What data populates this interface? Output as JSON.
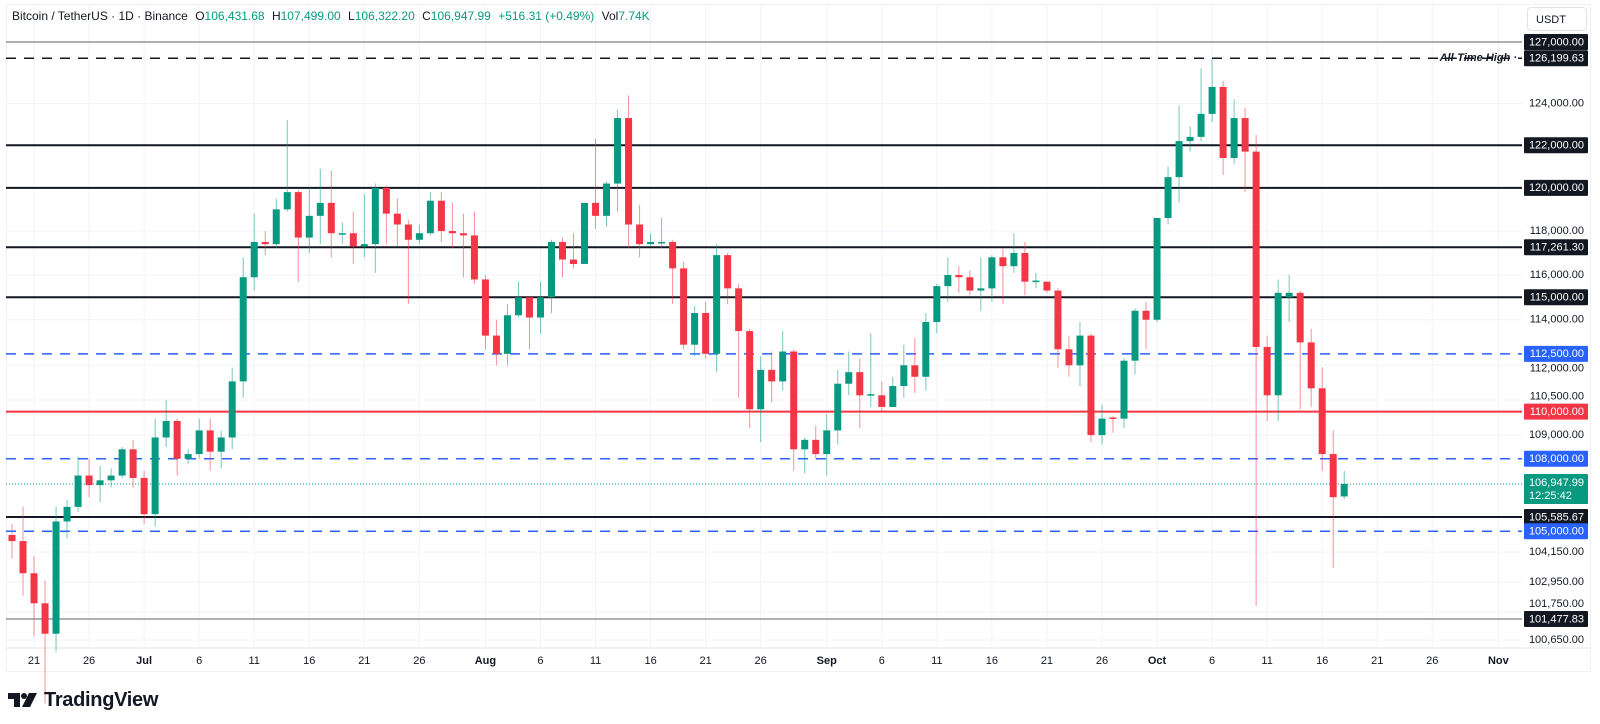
{
  "header": {
    "symbol": "Bitcoin / TetherUS · 1D · Binance",
    "o_label": "O",
    "o": "106,431.68",
    "h_label": "H",
    "h": "107,499.00",
    "l_label": "L",
    "l": "106,322.20",
    "c_label": "C",
    "c": "106,947.99",
    "change": "+516.31 (+0.49%)",
    "vol_label": "Vol",
    "vol": "7.74K"
  },
  "currency_button": "USDT",
  "brand": "TradingView",
  "colors": {
    "up": "#089981",
    "down": "#f23645",
    "blue": "#2962ff",
    "black": "#131722",
    "red": "#f23645"
  },
  "chart_data": {
    "type": "candlestick",
    "title": "Bitcoin / TetherUS · 1D · Binance",
    "scale": "log",
    "ylim": [
      100200,
      127600
    ],
    "start_date": "2025-06-19",
    "candles_ohlc": [
      [
        104850,
        105300,
        103900,
        104600
      ],
      [
        104600,
        106000,
        102400,
        103300
      ],
      [
        103300,
        104000,
        100800,
        102100
      ],
      [
        102100,
        103000,
        98200,
        100900
      ],
      [
        100900,
        106000,
        100200,
        105400
      ],
      [
        105400,
        106300,
        104700,
        106000
      ],
      [
        106000,
        108100,
        105800,
        107300
      ],
      [
        107300,
        108000,
        106400,
        106900
      ],
      [
        106900,
        107700,
        106200,
        107100
      ],
      [
        107100,
        107600,
        106800,
        107300
      ],
      [
        107300,
        108500,
        107200,
        108400
      ],
      [
        108400,
        108800,
        106800,
        107200
      ],
      [
        107200,
        107500,
        105300,
        105700
      ],
      [
        105700,
        109700,
        105200,
        108900
      ],
      [
        108900,
        110500,
        108500,
        109600
      ],
      [
        109600,
        109700,
        107300,
        108000
      ],
      [
        108000,
        108400,
        107800,
        108200
      ],
      [
        108200,
        109700,
        108000,
        109200
      ],
      [
        109200,
        109700,
        107500,
        108300
      ],
      [
        108300,
        109200,
        107600,
        108900
      ],
      [
        108900,
        111900,
        108400,
        111300
      ],
      [
        111300,
        116800,
        110600,
        115900
      ],
      [
        115900,
        118800,
        115300,
        117500
      ],
      [
        117500,
        118000,
        116900,
        117400
      ],
      [
        117400,
        119500,
        117200,
        119000
      ],
      [
        119000,
        123200,
        118900,
        119800
      ],
      [
        119800,
        119900,
        115700,
        117700
      ],
      [
        117700,
        120000,
        117000,
        118700
      ],
      [
        118700,
        120900,
        117400,
        119300
      ],
      [
        119300,
        120800,
        116800,
        117900
      ],
      [
        117900,
        118400,
        117400,
        117900
      ],
      [
        117900,
        118900,
        116500,
        117300
      ],
      [
        117300,
        119700,
        116800,
        117400
      ],
      [
        117400,
        120200,
        116100,
        120000
      ],
      [
        120000,
        120100,
        117400,
        118800
      ],
      [
        118800,
        119500,
        117300,
        118300
      ],
      [
        118300,
        118500,
        114700,
        117600
      ],
      [
        117600,
        118300,
        117400,
        117900
      ],
      [
        117900,
        119800,
        117800,
        119400
      ],
      [
        119400,
        119800,
        117500,
        118000
      ],
      [
        118000,
        119300,
        117200,
        117900
      ],
      [
        117900,
        118800,
        115900,
        117800
      ],
      [
        117800,
        118900,
        115600,
        115800
      ],
      [
        115800,
        116000,
        112700,
        113300
      ],
      [
        113300,
        114000,
        112000,
        112500
      ],
      [
        112500,
        114700,
        112000,
        114200
      ],
      [
        114200,
        115700,
        114100,
        115000
      ],
      [
        115000,
        115000,
        112700,
        114100
      ],
      [
        114100,
        115700,
        113400,
        115000
      ],
      [
        115000,
        117600,
        114300,
        117500
      ],
      [
        117500,
        117700,
        115900,
        116700
      ],
      [
        116700,
        117900,
        116300,
        116500
      ],
      [
        116500,
        119300,
        116500,
        119300
      ],
      [
        119300,
        122300,
        118100,
        118700
      ],
      [
        118700,
        120300,
        118200,
        120200
      ],
      [
        120200,
        123700,
        118900,
        123300
      ],
      [
        123300,
        124400,
        117200,
        118300
      ],
      [
        118300,
        119200,
        116800,
        117400
      ],
      [
        117400,
        117900,
        117300,
        117500
      ],
      [
        117500,
        118600,
        117200,
        117500
      ],
      [
        117500,
        117600,
        114700,
        116300
      ],
      [
        116300,
        116600,
        112700,
        112900
      ],
      [
        112900,
        114600,
        112400,
        114300
      ],
      [
        114300,
        114800,
        112300,
        112500
      ],
      [
        112500,
        117400,
        111700,
        116900
      ],
      [
        116900,
        117000,
        114700,
        115400
      ],
      [
        115400,
        115600,
        110600,
        113500
      ],
      [
        113500,
        113600,
        109300,
        110100
      ],
      [
        110100,
        112400,
        108700,
        111800
      ],
      [
        111800,
        112600,
        110400,
        111300
      ],
      [
        111300,
        113500,
        110900,
        112600
      ],
      [
        112600,
        112700,
        107500,
        108400
      ],
      [
        108400,
        108900,
        107400,
        108800
      ],
      [
        108800,
        109400,
        108000,
        108200
      ],
      [
        108200,
        109900,
        107300,
        109200
      ],
      [
        109200,
        111800,
        108600,
        111200
      ],
      [
        111200,
        112600,
        110700,
        111700
      ],
      [
        111700,
        112300,
        109300,
        110700
      ],
      [
        110700,
        113400,
        110200,
        110750
      ],
      [
        110700,
        111300,
        110000,
        110200
      ],
      [
        110200,
        111500,
        110200,
        111100
      ],
      [
        111100,
        112900,
        110600,
        112000
      ],
      [
        112000,
        113200,
        110800,
        111500
      ],
      [
        111500,
        114300,
        110900,
        113900
      ],
      [
        113900,
        115600,
        113400,
        115500
      ],
      [
        115500,
        116800,
        114800,
        116000
      ],
      [
        116000,
        116400,
        115200,
        115900
      ],
      [
        115900,
        116200,
        115100,
        115300
      ],
      [
        115300,
        116800,
        114400,
        115400
      ],
      [
        115400,
        116900,
        114800,
        116800
      ],
      [
        116800,
        117200,
        114700,
        116400
      ],
      [
        116400,
        117900,
        116100,
        117000
      ],
      [
        117000,
        117500,
        115100,
        115700
      ],
      [
        115700,
        116100,
        115400,
        115750
      ],
      [
        115700,
        115700,
        115200,
        115300
      ],
      [
        115300,
        115400,
        111900,
        112700
      ],
      [
        112700,
        113300,
        111500,
        112000
      ],
      [
        112000,
        113900,
        111100,
        113300
      ],
      [
        113300,
        113400,
        108700,
        109000
      ],
      [
        109000,
        110300,
        108600,
        109700
      ],
      [
        109750,
        109800,
        109100,
        109700
      ],
      [
        109700,
        112300,
        109300,
        112200
      ],
      [
        112200,
        114500,
        111600,
        114400
      ],
      [
        114400,
        114800,
        112700,
        114000
      ],
      [
        114000,
        118600,
        113900,
        118600
      ],
      [
        118600,
        121000,
        118300,
        120500
      ],
      [
        120500,
        123900,
        119300,
        122200
      ],
      [
        122200,
        122900,
        121700,
        122400
      ],
      [
        122400,
        125700,
        122200,
        123500
      ],
      [
        123500,
        126199.63,
        123100,
        124800
      ],
      [
        124800,
        125100,
        120600,
        121400
      ],
      [
        121400,
        124200,
        121100,
        123300
      ],
      [
        123300,
        123800,
        119800,
        121700
      ],
      [
        121700,
        122500,
        102000,
        112800
      ],
      [
        112800,
        113300,
        109600,
        110700
      ],
      [
        110700,
        115800,
        109600,
        115200
      ],
      [
        115000,
        116000,
        113900,
        115200
      ],
      [
        115200,
        115300,
        110100,
        113000
      ],
      [
        113000,
        113600,
        110200,
        111000
      ],
      [
        111000,
        111900,
        107500,
        108200
      ],
      [
        108200,
        109200,
        103500,
        106400
      ],
      [
        106431.68,
        107499,
        106322.2,
        106947.99
      ]
    ],
    "price_levels": [
      {
        "value": 127000,
        "label": "127,000.00",
        "style": "solid-thin",
        "color": "#131722"
      },
      {
        "value": 126199.63,
        "label": "126,199.63",
        "style": "dashed",
        "color": "#131722",
        "note": "All-Time High"
      },
      {
        "value": 122000,
        "label": "122,000.00",
        "style": "solid",
        "color": "#131722"
      },
      {
        "value": 120000,
        "label": "120,000.00",
        "style": "solid",
        "color": "#131722"
      },
      {
        "value": 117261.3,
        "label": "117,261.30",
        "style": "solid",
        "color": "#131722"
      },
      {
        "value": 115000,
        "label": "115,000.00",
        "style": "solid",
        "color": "#131722"
      },
      {
        "value": 112500,
        "label": "112,500.00",
        "style": "dashed",
        "color": "#2962ff"
      },
      {
        "value": 110000,
        "label": "110,000.00",
        "style": "solid",
        "color": "#f23645"
      },
      {
        "value": 108000,
        "label": "108,000.00",
        "style": "dashed",
        "color": "#2962ff"
      },
      {
        "value": 105585.67,
        "label": "105,585.67",
        "style": "solid",
        "color": "#131722"
      },
      {
        "value": 105000,
        "label": "105,000.00",
        "style": "dashed",
        "color": "#2962ff"
      },
      {
        "value": 101477.83,
        "label": "101,477.83",
        "style": "solid-thin",
        "color": "#131722"
      }
    ],
    "current_price": {
      "value": 106947.99,
      "label": "106,947.99",
      "countdown": "12:25:42",
      "color": "#089981"
    },
    "y_ticks": [
      {
        "value": 124000,
        "label": "124,000.00"
      },
      {
        "value": 118000,
        "label": "118,000.00"
      },
      {
        "value": 116000,
        "label": "116,000.00"
      },
      {
        "value": 114000,
        "label": "114,000.00"
      },
      {
        "value": 112000,
        "label": "112,000.00"
      },
      {
        "value": 110500,
        "label": "110,500.00"
      },
      {
        "value": 109000,
        "label": "109,000.00"
      },
      {
        "value": 104150,
        "label": "104,150.00"
      },
      {
        "value": 102950,
        "label": "102,950.00"
      },
      {
        "value": 101750,
        "label": "101,750.00"
      },
      {
        "value": 100650,
        "label": "100,650.00"
      }
    ],
    "x_ticks": [
      {
        "date": "2025-06-21",
        "label": "21"
      },
      {
        "date": "2025-06-26",
        "label": "26"
      },
      {
        "date": "2025-07-01",
        "label": "Jul"
      },
      {
        "date": "2025-07-06",
        "label": "6"
      },
      {
        "date": "2025-07-11",
        "label": "11"
      },
      {
        "date": "2025-07-16",
        "label": "16"
      },
      {
        "date": "2025-07-21",
        "label": "21"
      },
      {
        "date": "2025-07-26",
        "label": "26"
      },
      {
        "date": "2025-08-01",
        "label": "Aug"
      },
      {
        "date": "2025-08-06",
        "label": "6"
      },
      {
        "date": "2025-08-11",
        "label": "11"
      },
      {
        "date": "2025-08-16",
        "label": "16"
      },
      {
        "date": "2025-08-21",
        "label": "21"
      },
      {
        "date": "2025-08-26",
        "label": "26"
      },
      {
        "date": "2025-09-01",
        "label": "Sep"
      },
      {
        "date": "2025-09-06",
        "label": "6"
      },
      {
        "date": "2025-09-11",
        "label": "11"
      },
      {
        "date": "2025-09-16",
        "label": "16"
      },
      {
        "date": "2025-09-21",
        "label": "21"
      },
      {
        "date": "2025-09-26",
        "label": "26"
      },
      {
        "date": "2025-10-01",
        "label": "Oct"
      },
      {
        "date": "2025-10-06",
        "label": "6"
      },
      {
        "date": "2025-10-11",
        "label": "11"
      },
      {
        "date": "2025-10-16",
        "label": "16"
      },
      {
        "date": "2025-10-21",
        "label": "21"
      },
      {
        "date": "2025-10-26",
        "label": "26"
      },
      {
        "date": "2025-11-01",
        "label": "Nov"
      }
    ]
  }
}
